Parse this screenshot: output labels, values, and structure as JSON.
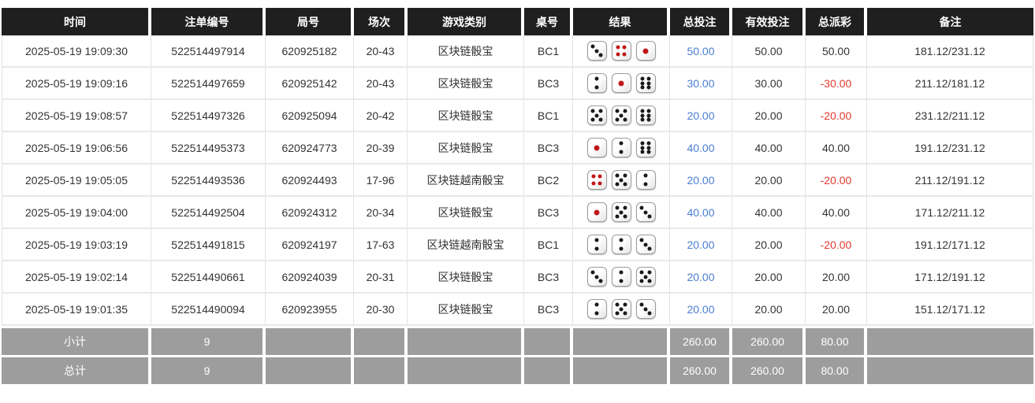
{
  "table": {
    "columns": [
      {
        "key": "time",
        "label": "时间"
      },
      {
        "key": "bet_id",
        "label": "注单编号"
      },
      {
        "key": "round_id",
        "label": "局号"
      },
      {
        "key": "session",
        "label": "场次"
      },
      {
        "key": "game",
        "label": "游戏类别"
      },
      {
        "key": "table_no",
        "label": "桌号"
      },
      {
        "key": "result",
        "label": "结果"
      },
      {
        "key": "total_bet",
        "label": "总投注"
      },
      {
        "key": "valid_bet",
        "label": "有效投注"
      },
      {
        "key": "payout",
        "label": "总派彩"
      },
      {
        "key": "remark",
        "label": "备注"
      }
    ],
    "rows": [
      {
        "time": "2025-05-19 19:09:30",
        "bet_id": "522514497914",
        "round_id": "620925182",
        "session": "20-43",
        "game": "区块链骰宝",
        "table_no": "BC1",
        "dice": [
          3,
          4,
          1
        ],
        "total_bet": "50.00",
        "valid_bet": "50.00",
        "payout": "50.00",
        "remark": "181.12/231.12"
      },
      {
        "time": "2025-05-19 19:09:16",
        "bet_id": "522514497659",
        "round_id": "620925142",
        "session": "20-43",
        "game": "区块链骰宝",
        "table_no": "BC3",
        "dice": [
          2,
          1,
          6
        ],
        "total_bet": "30.00",
        "valid_bet": "30.00",
        "payout": "-30.00",
        "remark": "211.12/181.12"
      },
      {
        "time": "2025-05-19 19:08:57",
        "bet_id": "522514497326",
        "round_id": "620925094",
        "session": "20-42",
        "game": "区块链骰宝",
        "table_no": "BC1",
        "dice": [
          5,
          5,
          6
        ],
        "total_bet": "20.00",
        "valid_bet": "20.00",
        "payout": "-20.00",
        "remark": "231.12/211.12"
      },
      {
        "time": "2025-05-19 19:06:56",
        "bet_id": "522514495373",
        "round_id": "620924773",
        "session": "20-39",
        "game": "区块链骰宝",
        "table_no": "BC3",
        "dice": [
          1,
          2,
          6
        ],
        "total_bet": "40.00",
        "valid_bet": "40.00",
        "payout": "40.00",
        "remark": "191.12/231.12"
      },
      {
        "time": "2025-05-19 19:05:05",
        "bet_id": "522514493536",
        "round_id": "620924493",
        "session": "17-96",
        "game": "区块链越南骰宝",
        "table_no": "BC2",
        "dice": [
          4,
          5,
          2
        ],
        "total_bet": "20.00",
        "valid_bet": "20.00",
        "payout": "-20.00",
        "remark": "211.12/191.12"
      },
      {
        "time": "2025-05-19 19:04:00",
        "bet_id": "522514492504",
        "round_id": "620924312",
        "session": "20-34",
        "game": "区块链骰宝",
        "table_no": "BC3",
        "dice": [
          1,
          5,
          3
        ],
        "total_bet": "40.00",
        "valid_bet": "40.00",
        "payout": "40.00",
        "remark": "171.12/211.12"
      },
      {
        "time": "2025-05-19 19:03:19",
        "bet_id": "522514491815",
        "round_id": "620924197",
        "session": "17-63",
        "game": "区块链越南骰宝",
        "table_no": "BC1",
        "dice": [
          2,
          2,
          3
        ],
        "total_bet": "20.00",
        "valid_bet": "20.00",
        "payout": "-20.00",
        "remark": "191.12/171.12"
      },
      {
        "time": "2025-05-19 19:02:14",
        "bet_id": "522514490661",
        "round_id": "620924039",
        "session": "20-31",
        "game": "区块链骰宝",
        "table_no": "BC3",
        "dice": [
          3,
          2,
          5
        ],
        "total_bet": "20.00",
        "valid_bet": "20.00",
        "payout": "20.00",
        "remark": "171.12/191.12"
      },
      {
        "time": "2025-05-19 19:01:35",
        "bet_id": "522514490094",
        "round_id": "620923955",
        "session": "20-30",
        "game": "区块链骰宝",
        "table_no": "BC3",
        "dice": [
          2,
          5,
          3
        ],
        "total_bet": "20.00",
        "valid_bet": "20.00",
        "payout": "20.00",
        "remark": "151.12/171.12"
      }
    ],
    "footer": [
      {
        "label": "小计",
        "count": "9",
        "total_bet": "260.00",
        "valid_bet": "260.00",
        "payout": "80.00"
      },
      {
        "label": "总计",
        "count": "9",
        "total_bet": "260.00",
        "valid_bet": "260.00",
        "payout": "80.00"
      }
    ]
  },
  "colors": {
    "header_bg": "#1f1f1f",
    "footer_bg": "#9d9d9d",
    "bet_amount_blue": "#4a7dd3",
    "negative_red": "#e0382e",
    "dice_pip_black": "#1a1a1a",
    "dice_pip_red": "#c01818"
  }
}
